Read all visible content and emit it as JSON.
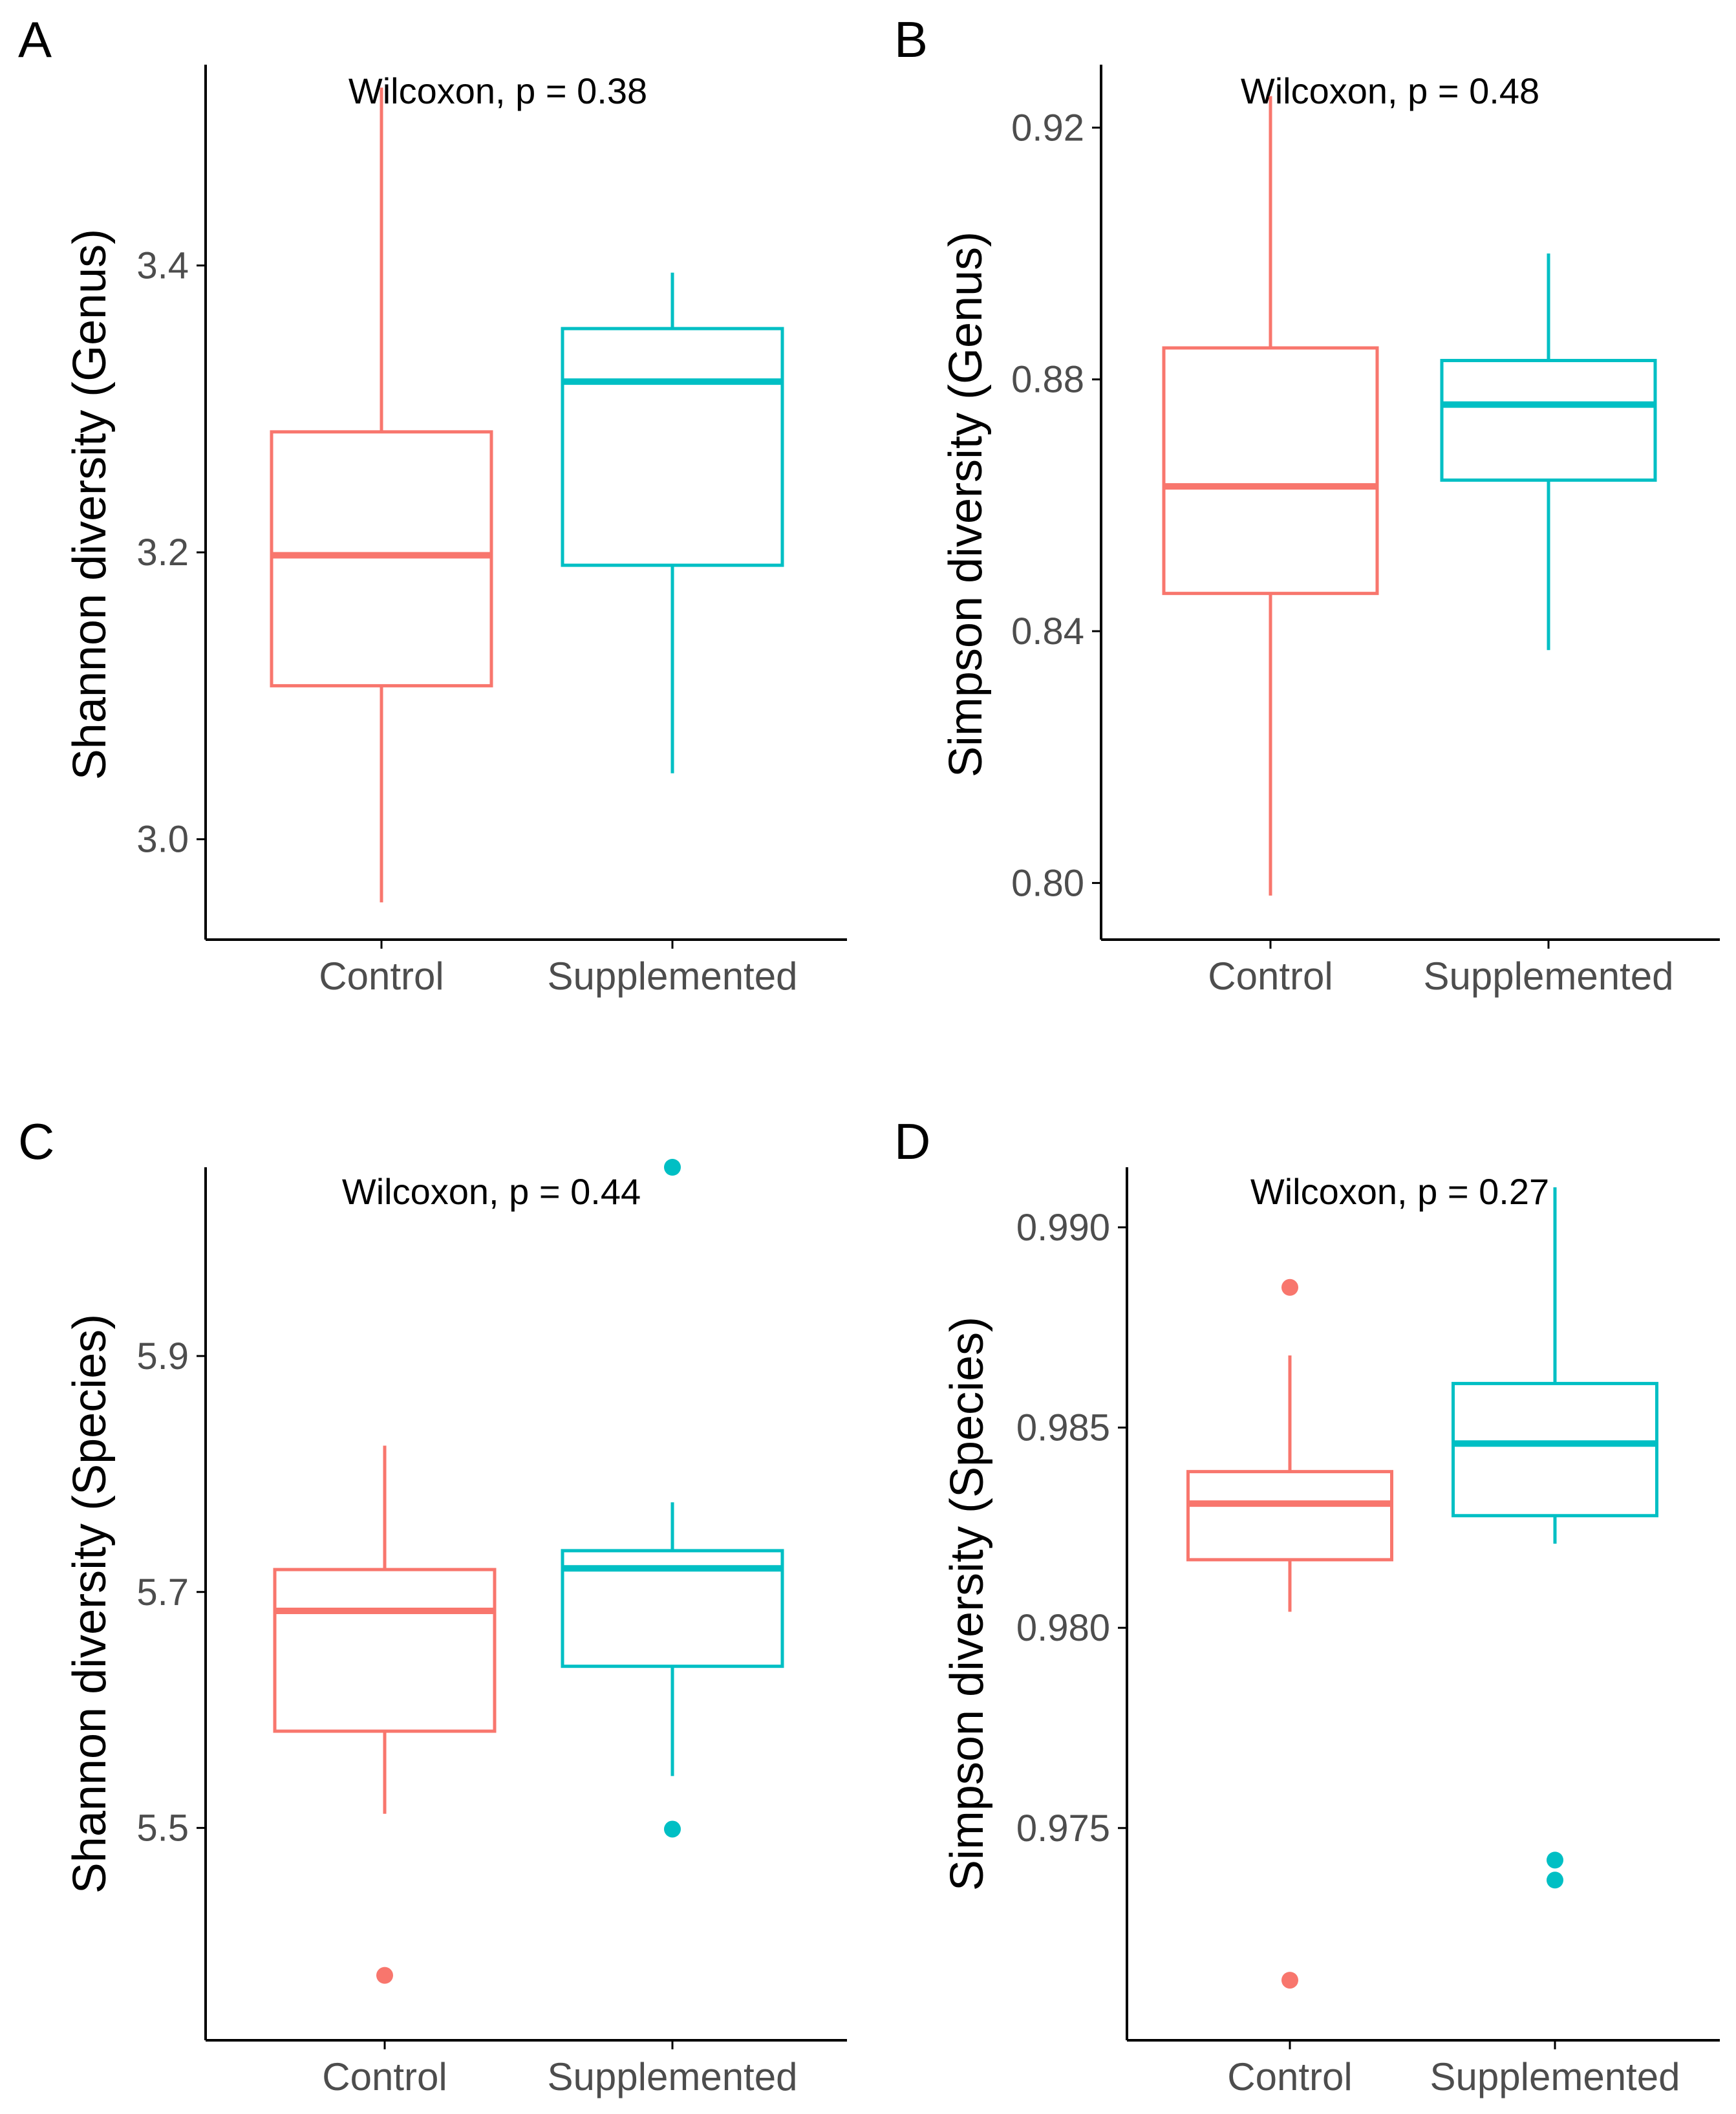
{
  "figure": {
    "colors": {
      "control": "#F8766D",
      "supplemented": "#00BFC4",
      "axis": "#000000",
      "tick_text": "#4d4d4d"
    }
  },
  "chart_data": [
    {
      "panel": "A",
      "type": "box",
      "annotation": "Wilcoxon, p = 0.38",
      "ylabel": "Shannon diversity (Genus)",
      "xlabel": "",
      "ylim": [
        2.93,
        3.54
      ],
      "yticks": [
        3.0,
        3.2,
        3.4
      ],
      "ytick_labels": [
        "3.0",
        "3.2",
        "3.4"
      ],
      "categories": [
        "Control",
        "Supplemented"
      ],
      "boxes": [
        {
          "group": "Control",
          "whisker_low": 2.956,
          "q1": 3.107,
          "median": 3.198,
          "q3": 3.284,
          "whisker_high": 3.524,
          "outliers": []
        },
        {
          "group": "Supplemented",
          "whisker_low": 3.046,
          "q1": 3.191,
          "median": 3.319,
          "q3": 3.356,
          "whisker_high": 3.395,
          "outliers": []
        }
      ]
    },
    {
      "panel": "B",
      "type": "box",
      "annotation": "Wilcoxon, p = 0.48",
      "ylabel": "Simpson diversity (Genus)",
      "xlabel": "",
      "ylim": [
        0.791,
        0.93
      ],
      "yticks": [
        0.8,
        0.84,
        0.88,
        0.92
      ],
      "ytick_labels": [
        "0.80",
        "0.84",
        "0.88",
        "0.92"
      ],
      "categories": [
        "Control",
        "Supplemented"
      ],
      "boxes": [
        {
          "group": "Control",
          "whisker_low": 0.798,
          "q1": 0.846,
          "median": 0.863,
          "q3": 0.885,
          "whisker_high": 0.925,
          "outliers": []
        },
        {
          "group": "Supplemented",
          "whisker_low": 0.837,
          "q1": 0.864,
          "median": 0.876,
          "q3": 0.883,
          "whisker_high": 0.9,
          "outliers": []
        }
      ]
    },
    {
      "panel": "C",
      "type": "box",
      "annotation": "Wilcoxon, p = 0.44",
      "ylabel": "Shannon diversity (Species)",
      "xlabel": "",
      "ylim": [
        5.32,
        6.06
      ],
      "yticks": [
        5.5,
        5.7,
        5.9
      ],
      "ytick_labels": [
        "5.5",
        "5.7",
        "5.9"
      ],
      "categories": [
        "Control",
        "Supplemented"
      ],
      "boxes": [
        {
          "group": "Control",
          "whisker_low": 5.512,
          "q1": 5.582,
          "median": 5.684,
          "q3": 5.719,
          "whisker_high": 5.824,
          "outliers": [
            5.375
          ]
        },
        {
          "group": "Supplemented",
          "whisker_low": 5.544,
          "q1": 5.637,
          "median": 5.72,
          "q3": 5.735,
          "whisker_high": 5.776,
          "outliers": [
            5.499,
            6.06
          ]
        }
      ]
    },
    {
      "panel": "D",
      "type": "box",
      "annotation": "Wilcoxon, p = 0.27",
      "ylabel": "Simpson diversity (Species)",
      "xlabel": "",
      "ylim": [
        0.9697,
        0.9915
      ],
      "yticks": [
        0.975,
        0.98,
        0.985,
        0.99
      ],
      "ytick_labels": [
        "0.975",
        "0.980",
        "0.985",
        "0.990"
      ],
      "categories": [
        "Control",
        "Supplemented"
      ],
      "boxes": [
        {
          "group": "Control",
          "whisker_low": 0.9804,
          "q1": 0.9817,
          "median": 0.9831,
          "q3": 0.9839,
          "whisker_high": 0.9868,
          "outliers": [
            0.9885,
            0.9712
          ]
        },
        {
          "group": "Supplemented",
          "whisker_low": 0.9821,
          "q1": 0.9828,
          "median": 0.9846,
          "q3": 0.9861,
          "whisker_high": 0.991,
          "outliers": [
            0.9742,
            0.9737
          ]
        }
      ]
    }
  ]
}
